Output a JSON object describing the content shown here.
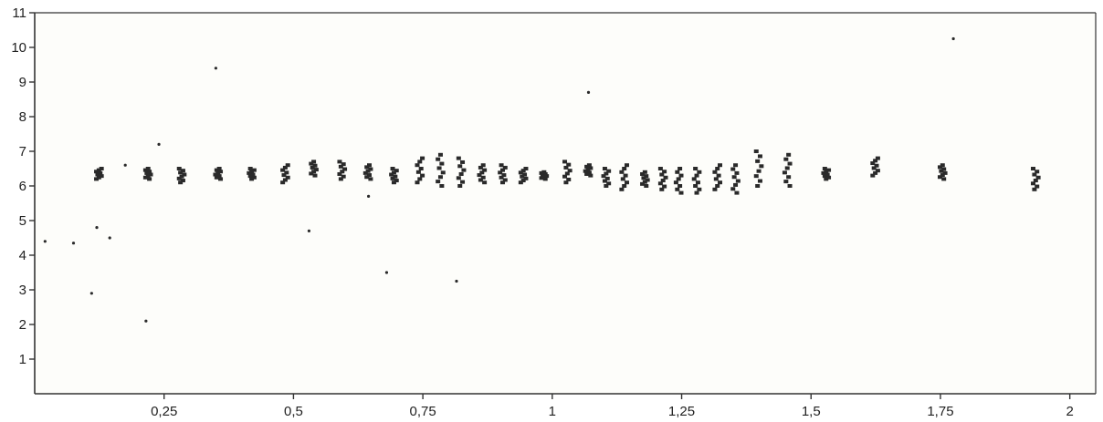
{
  "chart_data": {
    "type": "scatter",
    "title": "",
    "xlabel": "",
    "ylabel": "",
    "xlim": [
      0,
      2.05
    ],
    "ylim": [
      0,
      11
    ],
    "x_ticks": [
      0.25,
      0.5,
      0.75,
      1,
      1.25,
      1.5,
      1.75,
      2
    ],
    "x_tick_labels": [
      "0,25",
      "0,5",
      "0,75",
      "1",
      "1,25",
      "1,5",
      "1,75",
      "2"
    ],
    "y_ticks": [
      1,
      2,
      3,
      4,
      5,
      6,
      7,
      8,
      9,
      10,
      11
    ],
    "y_tick_labels": [
      "1",
      "2",
      "3",
      "4",
      "5",
      "6",
      "7",
      "8",
      "9",
      "10",
      "11"
    ],
    "grid": false,
    "legend": "none",
    "colors": {
      "marker": "#2a2a2a",
      "axis": "#333333",
      "plot_background": "#fdfdfa"
    },
    "clusters": [
      {
        "x": 0.125,
        "y_low": 6.2,
        "y_high": 6.5
      },
      {
        "x": 0.22,
        "y_low": 6.2,
        "y_high": 6.5
      },
      {
        "x": 0.285,
        "y_low": 6.1,
        "y_high": 6.5
      },
      {
        "x": 0.355,
        "y_low": 6.2,
        "y_high": 6.5
      },
      {
        "x": 0.42,
        "y_low": 6.2,
        "y_high": 6.5
      },
      {
        "x": 0.485,
        "y_low": 6.1,
        "y_high": 6.6
      },
      {
        "x": 0.54,
        "y_low": 6.3,
        "y_high": 6.7
      },
      {
        "x": 0.595,
        "y_low": 6.2,
        "y_high": 6.7
      },
      {
        "x": 0.645,
        "y_low": 6.2,
        "y_high": 6.6
      },
      {
        "x": 0.695,
        "y_low": 6.1,
        "y_high": 6.5
      },
      {
        "x": 0.745,
        "y_low": 6.1,
        "y_high": 6.8
      },
      {
        "x": 0.785,
        "y_low": 6.0,
        "y_high": 6.9
      },
      {
        "x": 0.825,
        "y_low": 6.0,
        "y_high": 6.8
      },
      {
        "x": 0.865,
        "y_low": 6.1,
        "y_high": 6.6
      },
      {
        "x": 0.905,
        "y_low": 6.1,
        "y_high": 6.6
      },
      {
        "x": 0.945,
        "y_low": 6.1,
        "y_high": 6.5
      },
      {
        "x": 0.985,
        "y_low": 6.2,
        "y_high": 6.4
      },
      {
        "x": 1.03,
        "y_low": 6.1,
        "y_high": 6.7
      },
      {
        "x": 1.07,
        "y_low": 6.3,
        "y_high": 6.6
      },
      {
        "x": 1.105,
        "y_low": 6.0,
        "y_high": 6.5
      },
      {
        "x": 1.14,
        "y_low": 5.9,
        "y_high": 6.6
      },
      {
        "x": 1.18,
        "y_low": 6.0,
        "y_high": 6.4
      },
      {
        "x": 1.215,
        "y_low": 5.9,
        "y_high": 6.5
      },
      {
        "x": 1.245,
        "y_low": 5.8,
        "y_high": 6.5
      },
      {
        "x": 1.28,
        "y_low": 5.8,
        "y_high": 6.5
      },
      {
        "x": 1.32,
        "y_low": 5.9,
        "y_high": 6.6
      },
      {
        "x": 1.355,
        "y_low": 5.8,
        "y_high": 6.6
      },
      {
        "x": 1.4,
        "y_low": 6.0,
        "y_high": 7.0
      },
      {
        "x": 1.455,
        "y_low": 6.0,
        "y_high": 6.9
      },
      {
        "x": 1.53,
        "y_low": 6.2,
        "y_high": 6.5
      },
      {
        "x": 1.625,
        "y_low": 6.3,
        "y_high": 6.8
      },
      {
        "x": 1.755,
        "y_low": 6.2,
        "y_high": 6.6
      },
      {
        "x": 1.935,
        "y_low": 5.9,
        "y_high": 6.5
      }
    ],
    "outliers": [
      {
        "x": 0.02,
        "y": 4.4
      },
      {
        "x": 0.075,
        "y": 4.35
      },
      {
        "x": 0.11,
        "y": 2.9
      },
      {
        "x": 0.12,
        "y": 4.8
      },
      {
        "x": 0.145,
        "y": 4.5
      },
      {
        "x": 0.175,
        "y": 6.6
      },
      {
        "x": 0.215,
        "y": 2.1
      },
      {
        "x": 0.24,
        "y": 7.2
      },
      {
        "x": 0.35,
        "y": 9.4
      },
      {
        "x": 0.53,
        "y": 4.7
      },
      {
        "x": 0.645,
        "y": 5.7
      },
      {
        "x": 0.68,
        "y": 3.5
      },
      {
        "x": 0.815,
        "y": 3.25
      },
      {
        "x": 1.07,
        "y": 8.7
      },
      {
        "x": 1.775,
        "y": 10.25
      }
    ]
  }
}
